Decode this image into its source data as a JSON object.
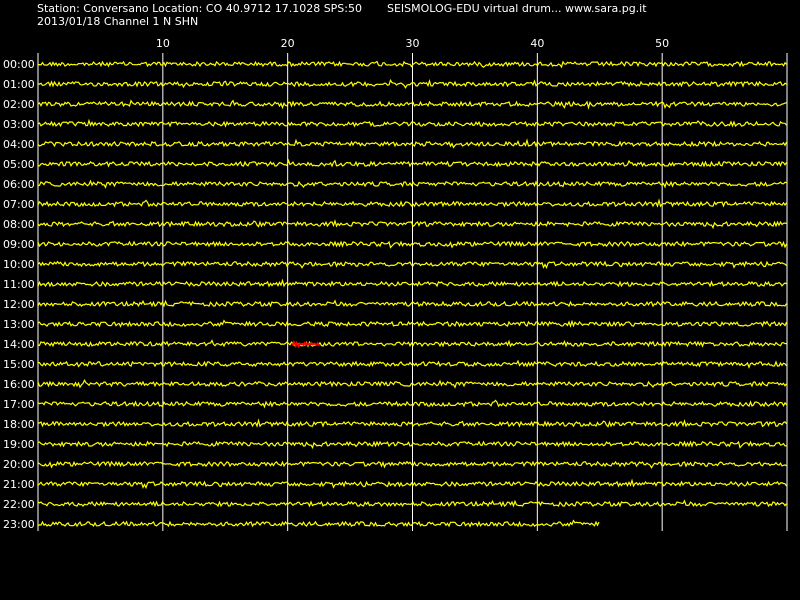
{
  "header": {
    "station_line": "Station: Conversano Location: CO 40.9712 17.1028 SPS:50",
    "title_line": "SEISMOLOG-EDU virtual drum... www.sara.pg.it",
    "date_line": "2013/01/18  Channel 1 N SHN"
  },
  "colors": {
    "background": "#000000",
    "trace": "#ffff00",
    "event": "#ff0000",
    "grid": "#ffffff",
    "text": "#ffffff"
  },
  "chart_data": {
    "type": "line",
    "title": "",
    "xlabel": "",
    "ylabel": "",
    "xlim": [
      0,
      60
    ],
    "x_ticks": [
      10,
      20,
      30,
      40,
      50
    ],
    "grid": true,
    "row_labels": [
      "00:00",
      "01:00",
      "02:00",
      "03:00",
      "04:00",
      "05:00",
      "06:00",
      "07:00",
      "08:00",
      "09:00",
      "10:00",
      "11:00",
      "12:00",
      "13:00",
      "14:00",
      "15:00",
      "16:00",
      "17:00",
      "18:00",
      "19:00",
      "20:00",
      "21:00",
      "22:00",
      "23:00"
    ],
    "row_end_minutes": [
      60,
      60,
      60,
      60,
      60,
      60,
      60,
      60,
      60,
      60,
      60,
      60,
      60,
      60,
      60,
      60,
      60,
      60,
      60,
      60,
      60,
      60,
      60,
      45
    ],
    "events": [
      {
        "row": "14:00",
        "start_minute": 20.4,
        "end_minute": 22.6,
        "color": "#ff0000"
      }
    ]
  }
}
